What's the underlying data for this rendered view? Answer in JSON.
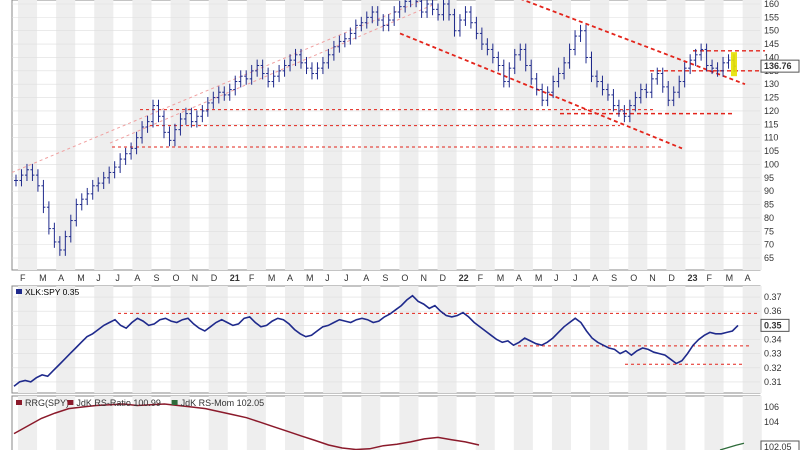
{
  "colors": {
    "price_bar": "#1f2a8c",
    "ratio_line": "#1f2a8c",
    "rs_ratio": "#8b1a2b",
    "rs_mom": "#2e6b3a",
    "trend_red": "#e3241b",
    "channel_pink": "#f0a0a0",
    "panel_band": "#eeeeee",
    "highlight": "#e6e000"
  },
  "chart_data": [
    {
      "type": "ohlc-bar",
      "title": "",
      "ylim": [
        65,
        160
      ],
      "y_ticks": [
        65,
        70,
        75,
        80,
        85,
        90,
        95,
        100,
        105,
        110,
        115,
        120,
        125,
        130,
        135,
        140,
        145,
        150,
        155,
        160
      ],
      "last_value_label": "136.76",
      "x_axis_labels": [
        "F",
        "M",
        "A",
        "M",
        "J",
        "J",
        "A",
        "S",
        "O",
        "N",
        "D",
        "21",
        "F",
        "M",
        "A",
        "M",
        "J",
        "J",
        "A",
        "S",
        "O",
        "N",
        "D",
        "22",
        "F",
        "M",
        "A",
        "M",
        "J",
        "J",
        "A",
        "S",
        "O",
        "N",
        "D",
        "23",
        "F",
        "M",
        "A"
      ],
      "series": [
        {
          "values": [
            94,
            96,
            98,
            96,
            92,
            84,
            76,
            71,
            68,
            73,
            79,
            85,
            87,
            89,
            92,
            93,
            95,
            97,
            99,
            102,
            104,
            106,
            110,
            114,
            116,
            122,
            118,
            112,
            109,
            113,
            117,
            119,
            116,
            118,
            120,
            123,
            125,
            127,
            126,
            128,
            131,
            133,
            132,
            135,
            137,
            134,
            131,
            133,
            135,
            137,
            139,
            141,
            138,
            136,
            134,
            136,
            138,
            141,
            144,
            146,
            147,
            149,
            152,
            153,
            155,
            157,
            154,
            152,
            154,
            157,
            159,
            161,
            163,
            161,
            157,
            160,
            158,
            156,
            160,
            156,
            150,
            154,
            157,
            153,
            149,
            145,
            143,
            140,
            137,
            131,
            136,
            141,
            143,
            137,
            132,
            128,
            124,
            127,
            131,
            134,
            138,
            143,
            148,
            150,
            140,
            133,
            131,
            128,
            126,
            122,
            120,
            118,
            122,
            125,
            128,
            127,
            132,
            134,
            129,
            124,
            127,
            131,
            136,
            139,
            141,
            143,
            137,
            136,
            135,
            138,
            139,
            136.76
          ]
        }
      ],
      "reference_lines": [
        120.5,
        114.5,
        106.5,
        142.5,
        135,
        119
      ]
    },
    {
      "type": "line",
      "title": "XLK:SPY 0.35",
      "ylim": [
        0.305,
        0.375
      ],
      "y_ticks": [
        0.31,
        0.32,
        0.33,
        0.34,
        0.35,
        0.36,
        0.37
      ],
      "last_value_label": "0.35",
      "series": [
        {
          "name": "XLK:SPY",
          "values": [
            0.307,
            0.31,
            0.311,
            0.31,
            0.313,
            0.315,
            0.314,
            0.318,
            0.322,
            0.326,
            0.33,
            0.334,
            0.338,
            0.342,
            0.344,
            0.347,
            0.35,
            0.352,
            0.354,
            0.35,
            0.348,
            0.352,
            0.355,
            0.353,
            0.35,
            0.351,
            0.354,
            0.355,
            0.353,
            0.352,
            0.354,
            0.355,
            0.351,
            0.348,
            0.346,
            0.349,
            0.352,
            0.354,
            0.352,
            0.35,
            0.351,
            0.355,
            0.356,
            0.352,
            0.349,
            0.35,
            0.353,
            0.355,
            0.354,
            0.351,
            0.347,
            0.344,
            0.342,
            0.343,
            0.346,
            0.349,
            0.35,
            0.352,
            0.354,
            0.353,
            0.352,
            0.354,
            0.355,
            0.354,
            0.352,
            0.353,
            0.356,
            0.358,
            0.361,
            0.364,
            0.368,
            0.371,
            0.367,
            0.365,
            0.362,
            0.364,
            0.36,
            0.357,
            0.356,
            0.357,
            0.359,
            0.356,
            0.352,
            0.349,
            0.346,
            0.343,
            0.34,
            0.338,
            0.339,
            0.336,
            0.338,
            0.341,
            0.339,
            0.337,
            0.336,
            0.338,
            0.341,
            0.345,
            0.349,
            0.352,
            0.355,
            0.352,
            0.346,
            0.341,
            0.338,
            0.336,
            0.334,
            0.333,
            0.33,
            0.332,
            0.329,
            0.332,
            0.334,
            0.333,
            0.331,
            0.33,
            0.329,
            0.326,
            0.323,
            0.325,
            0.33,
            0.336,
            0.34,
            0.343,
            0.345,
            0.344,
            0.344,
            0.345,
            0.346,
            0.35
          ]
        }
      ],
      "reference_lines": [
        0.3585,
        0.3355,
        0.3225
      ]
    },
    {
      "type": "line",
      "title": "RRG(SPY) JdK RS-Ratio 100.99 JdK RS-Mom 102.05",
      "y_ticks": [
        104,
        106
      ],
      "last_value_label": "102.05",
      "legend": [
        {
          "label": "RRG(SPY)",
          "color_key": "rs_ratio"
        },
        {
          "label": "JdK RS-Ratio 100.99",
          "color_key": "rs_ratio"
        },
        {
          "label": "JdK RS-Mom 102.05",
          "color_key": "rs_mom"
        }
      ],
      "series": [
        {
          "name": "JdK RS-Ratio",
          "values": [
            102.5,
            103.5,
            104.5,
            105.2,
            105.8,
            106.0,
            106.2,
            106.3,
            106.4,
            106.2,
            106.3,
            106.4,
            106.2,
            106.0,
            105.8,
            105.4,
            105.0,
            104.6,
            104.0,
            103.4,
            102.8,
            102.2,
            101.6,
            101.0,
            100.6,
            100.4,
            100.5,
            100.9,
            101.1,
            101.4,
            101.8,
            102.0,
            101.7,
            101.4,
            101.0
          ]
        },
        {
          "name": "JdK RS-Mom",
          "values": [
            101.2,
            101.5,
            101.8,
            102.05
          ]
        }
      ]
    }
  ]
}
